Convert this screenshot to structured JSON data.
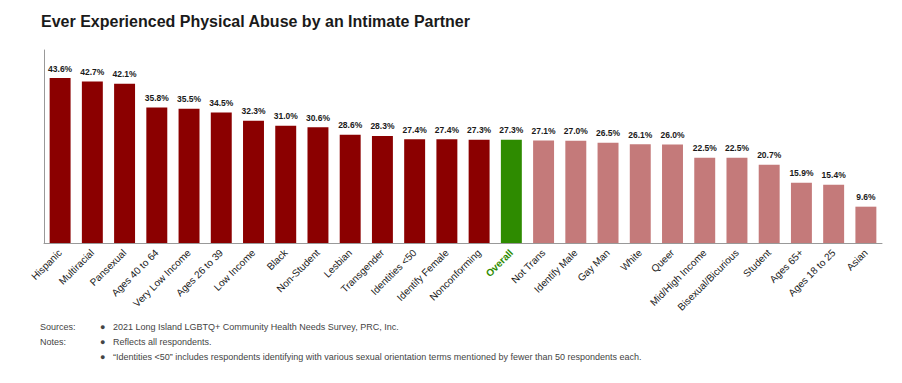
{
  "chart_data": {
    "type": "bar",
    "title": "Ever Experienced Physical Abuse by an Intimate Partner",
    "categories": [
      "Hispanic",
      "Multiracial",
      "Pansexual",
      "Ages 40 to 64",
      "Very Low Income",
      "Ages 26 to 39",
      "Low Income",
      "Black",
      "Non-Student",
      "Lesbian",
      "Transgender",
      "Identities <50",
      "Identify Female",
      "Nonconforming",
      "Overall",
      "Not Trans",
      "Identify Male",
      "Gay Man",
      "White",
      "Queer",
      "Mid/High Income",
      "Bisexual/Bicurious",
      "Student",
      "Ages 65+",
      "Ages 18 to 25",
      "Asian"
    ],
    "values": [
      43.6,
      42.7,
      42.1,
      35.8,
      35.5,
      34.5,
      32.3,
      31.0,
      30.6,
      28.6,
      28.3,
      27.4,
      27.4,
      27.3,
      27.3,
      27.1,
      27.0,
      26.5,
      26.1,
      26.0,
      22.5,
      22.5,
      20.7,
      15.9,
      15.4,
      9.6
    ],
    "value_labels": [
      "43.6%",
      "42.7%",
      "42.1%",
      "35.8%",
      "35.5%",
      "34.5%",
      "32.3%",
      "31.0%",
      "30.6%",
      "28.6%",
      "28.3%",
      "27.4%",
      "27.4%",
      "27.3%",
      "27.3%",
      "27.1%",
      "27.0%",
      "26.5%",
      "26.1%",
      "26.0%",
      "22.5%",
      "22.5%",
      "20.7%",
      "15.9%",
      "15.4%",
      "9.6%"
    ],
    "colors": [
      "#8B0000",
      "#8B0000",
      "#8B0000",
      "#8B0000",
      "#8B0000",
      "#8B0000",
      "#8B0000",
      "#8B0000",
      "#8B0000",
      "#8B0000",
      "#8B0000",
      "#8B0000",
      "#8B0000",
      "#8B0000",
      "#2E8B00",
      "#C47A7A",
      "#C47A7A",
      "#C47A7A",
      "#C47A7A",
      "#C47A7A",
      "#C47A7A",
      "#C47A7A",
      "#C47A7A",
      "#C47A7A",
      "#C47A7A",
      "#C47A7A"
    ],
    "data_labels": true,
    "ylim": [
      0,
      51
    ],
    "yticks": [],
    "tick_labels": "x",
    "grid": false,
    "annotations": [
      "Sources:",
      "Notes:",
      "●   2021 Long Island LGBTQ+ Community Health Needs Survey, PRC, Inc.",
      "●   Reflects all respondents.",
      "●   “Identities <50” includes respondents identifying with various sexual orientation terms mentioned by fewer than 50 respondents each."
    ]
  }
}
